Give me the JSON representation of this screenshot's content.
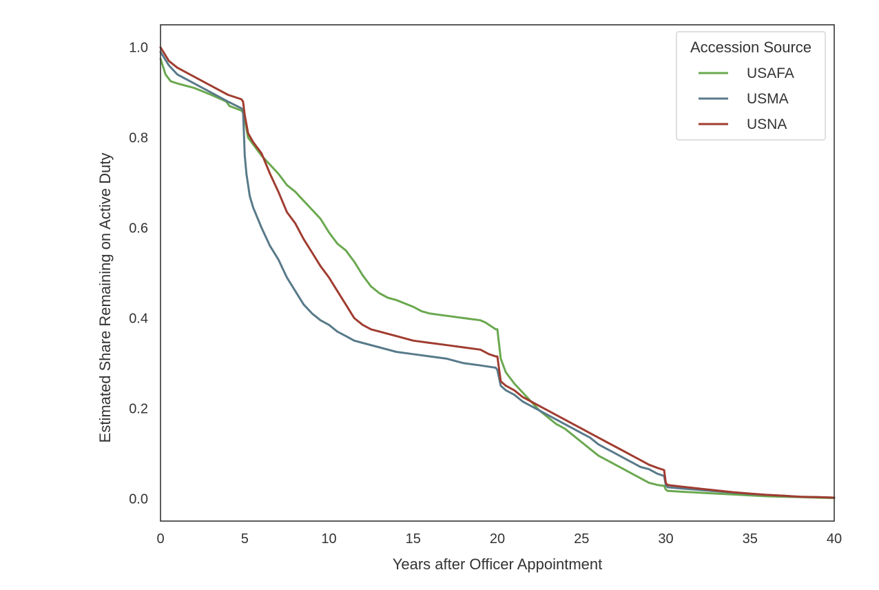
{
  "chart_data": {
    "type": "line",
    "title": "",
    "xlabel": "Years after Officer Appointment",
    "ylabel": "Estimated Share Remaining on Active Duty",
    "xlim": [
      0,
      40
    ],
    "ylim": [
      -0.05,
      1.05
    ],
    "xticks": [
      0,
      5,
      10,
      15,
      20,
      25,
      30,
      35,
      40
    ],
    "xtick_labels": [
      "0",
      "5",
      "10",
      "15",
      "20",
      "25",
      "30",
      "35",
      "40"
    ],
    "yticks": [
      0.0,
      0.2,
      0.4,
      0.6,
      0.8,
      1.0
    ],
    "ytick_labels": [
      "0.0",
      "0.2",
      "0.4",
      "0.6",
      "0.8",
      "1.0"
    ],
    "grid": false,
    "legend": {
      "title": "Accession Source",
      "placement": "top-right"
    },
    "series": [
      {
        "name": "USAFA",
        "color": "#6aa84f",
        "x": [
          0,
          0.3,
          0.6,
          1,
          2,
          3,
          3.9,
          4.1,
          4.8,
          4.9,
          5,
          5.2,
          5.5,
          6,
          6.5,
          7,
          7.5,
          8,
          8.5,
          9,
          9.5,
          10,
          10.5,
          11,
          11.5,
          12,
          12.5,
          13,
          13.5,
          14,
          15,
          15.5,
          16,
          17,
          18,
          19,
          19.3,
          19.7,
          19.9,
          20,
          20.2,
          20.5,
          21,
          21.5,
          22,
          22.5,
          23,
          23.5,
          24,
          24.5,
          25,
          25.5,
          26,
          26.5,
          27,
          27.5,
          28,
          28.5,
          29,
          29.5,
          29.9,
          30,
          30.1,
          31,
          32,
          33,
          34,
          35,
          36,
          37,
          38,
          39,
          40
        ],
        "y": [
          0.975,
          0.94,
          0.925,
          0.92,
          0.91,
          0.895,
          0.88,
          0.87,
          0.86,
          0.855,
          0.84,
          0.8,
          0.785,
          0.76,
          0.74,
          0.72,
          0.695,
          0.68,
          0.66,
          0.64,
          0.62,
          0.59,
          0.565,
          0.55,
          0.525,
          0.495,
          0.47,
          0.455,
          0.445,
          0.44,
          0.425,
          0.415,
          0.41,
          0.405,
          0.4,
          0.395,
          0.39,
          0.38,
          0.375,
          0.375,
          0.31,
          0.28,
          0.255,
          0.235,
          0.215,
          0.195,
          0.18,
          0.165,
          0.155,
          0.14,
          0.125,
          0.11,
          0.095,
          0.085,
          0.075,
          0.065,
          0.055,
          0.045,
          0.035,
          0.03,
          0.028,
          0.02,
          0.017,
          0.015,
          0.013,
          0.011,
          0.009,
          0.007,
          0.005,
          0.004,
          0.003,
          0.002,
          0.001
        ]
      },
      {
        "name": "USMA",
        "color": "#587a8a",
        "x": [
          0,
          0.5,
          1,
          2,
          3,
          4,
          4.8,
          4.9,
          5,
          5.1,
          5.3,
          5.5,
          6,
          6.5,
          7,
          7.5,
          8,
          8.5,
          9,
          9.5,
          10,
          10.5,
          11,
          11.5,
          12,
          13,
          14,
          15,
          16,
          17,
          18,
          19,
          19.9,
          20,
          20.2,
          20.5,
          21,
          21.5,
          22,
          22.5,
          23,
          23.5,
          24,
          24.5,
          25,
          25.5,
          26,
          26.5,
          27,
          27.5,
          28,
          28.5,
          29,
          29.5,
          29.9,
          30,
          30.1,
          31,
          32,
          33,
          34,
          35,
          36,
          37,
          38,
          39,
          40
        ],
        "y": [
          0.99,
          0.96,
          0.94,
          0.92,
          0.9,
          0.88,
          0.865,
          0.86,
          0.76,
          0.72,
          0.67,
          0.645,
          0.6,
          0.56,
          0.53,
          0.49,
          0.46,
          0.43,
          0.41,
          0.395,
          0.385,
          0.37,
          0.36,
          0.35,
          0.345,
          0.335,
          0.325,
          0.32,
          0.315,
          0.31,
          0.3,
          0.295,
          0.29,
          0.285,
          0.25,
          0.24,
          0.23,
          0.215,
          0.205,
          0.195,
          0.185,
          0.175,
          0.165,
          0.155,
          0.145,
          0.135,
          0.12,
          0.11,
          0.1,
          0.09,
          0.08,
          0.07,
          0.065,
          0.055,
          0.05,
          0.03,
          0.025,
          0.022,
          0.019,
          0.016,
          0.013,
          0.01,
          0.008,
          0.006,
          0.004,
          0.003,
          0.002
        ]
      },
      {
        "name": "USNA",
        "color": "#a03c30",
        "x": [
          0,
          0.5,
          1,
          2,
          3,
          4,
          4.8,
          4.9,
          5,
          5.2,
          5.5,
          6,
          6.5,
          7,
          7.5,
          8,
          8.5,
          9,
          9.5,
          10,
          10.5,
          11,
          11.5,
          12,
          12.5,
          13,
          14,
          15,
          16,
          17,
          18,
          19,
          19.5,
          19.9,
          20,
          20.2,
          20.5,
          21,
          21.5,
          22,
          22.5,
          23,
          23.5,
          24,
          24.5,
          25,
          25.5,
          26,
          26.5,
          27,
          27.5,
          28,
          28.5,
          29,
          29.5,
          29.9,
          30,
          30.1,
          31,
          32,
          33,
          34,
          35,
          36,
          37,
          38,
          39,
          40
        ],
        "y": [
          1.0,
          0.97,
          0.955,
          0.935,
          0.915,
          0.895,
          0.885,
          0.88,
          0.85,
          0.81,
          0.79,
          0.765,
          0.72,
          0.68,
          0.635,
          0.61,
          0.575,
          0.545,
          0.515,
          0.49,
          0.46,
          0.43,
          0.4,
          0.385,
          0.375,
          0.37,
          0.36,
          0.35,
          0.345,
          0.34,
          0.335,
          0.33,
          0.32,
          0.315,
          0.315,
          0.26,
          0.25,
          0.24,
          0.225,
          0.215,
          0.205,
          0.195,
          0.185,
          0.175,
          0.165,
          0.155,
          0.145,
          0.135,
          0.125,
          0.115,
          0.105,
          0.095,
          0.085,
          0.075,
          0.068,
          0.063,
          0.035,
          0.03,
          0.026,
          0.022,
          0.018,
          0.014,
          0.011,
          0.008,
          0.006,
          0.004,
          0.003,
          0.002
        ]
      }
    ]
  }
}
